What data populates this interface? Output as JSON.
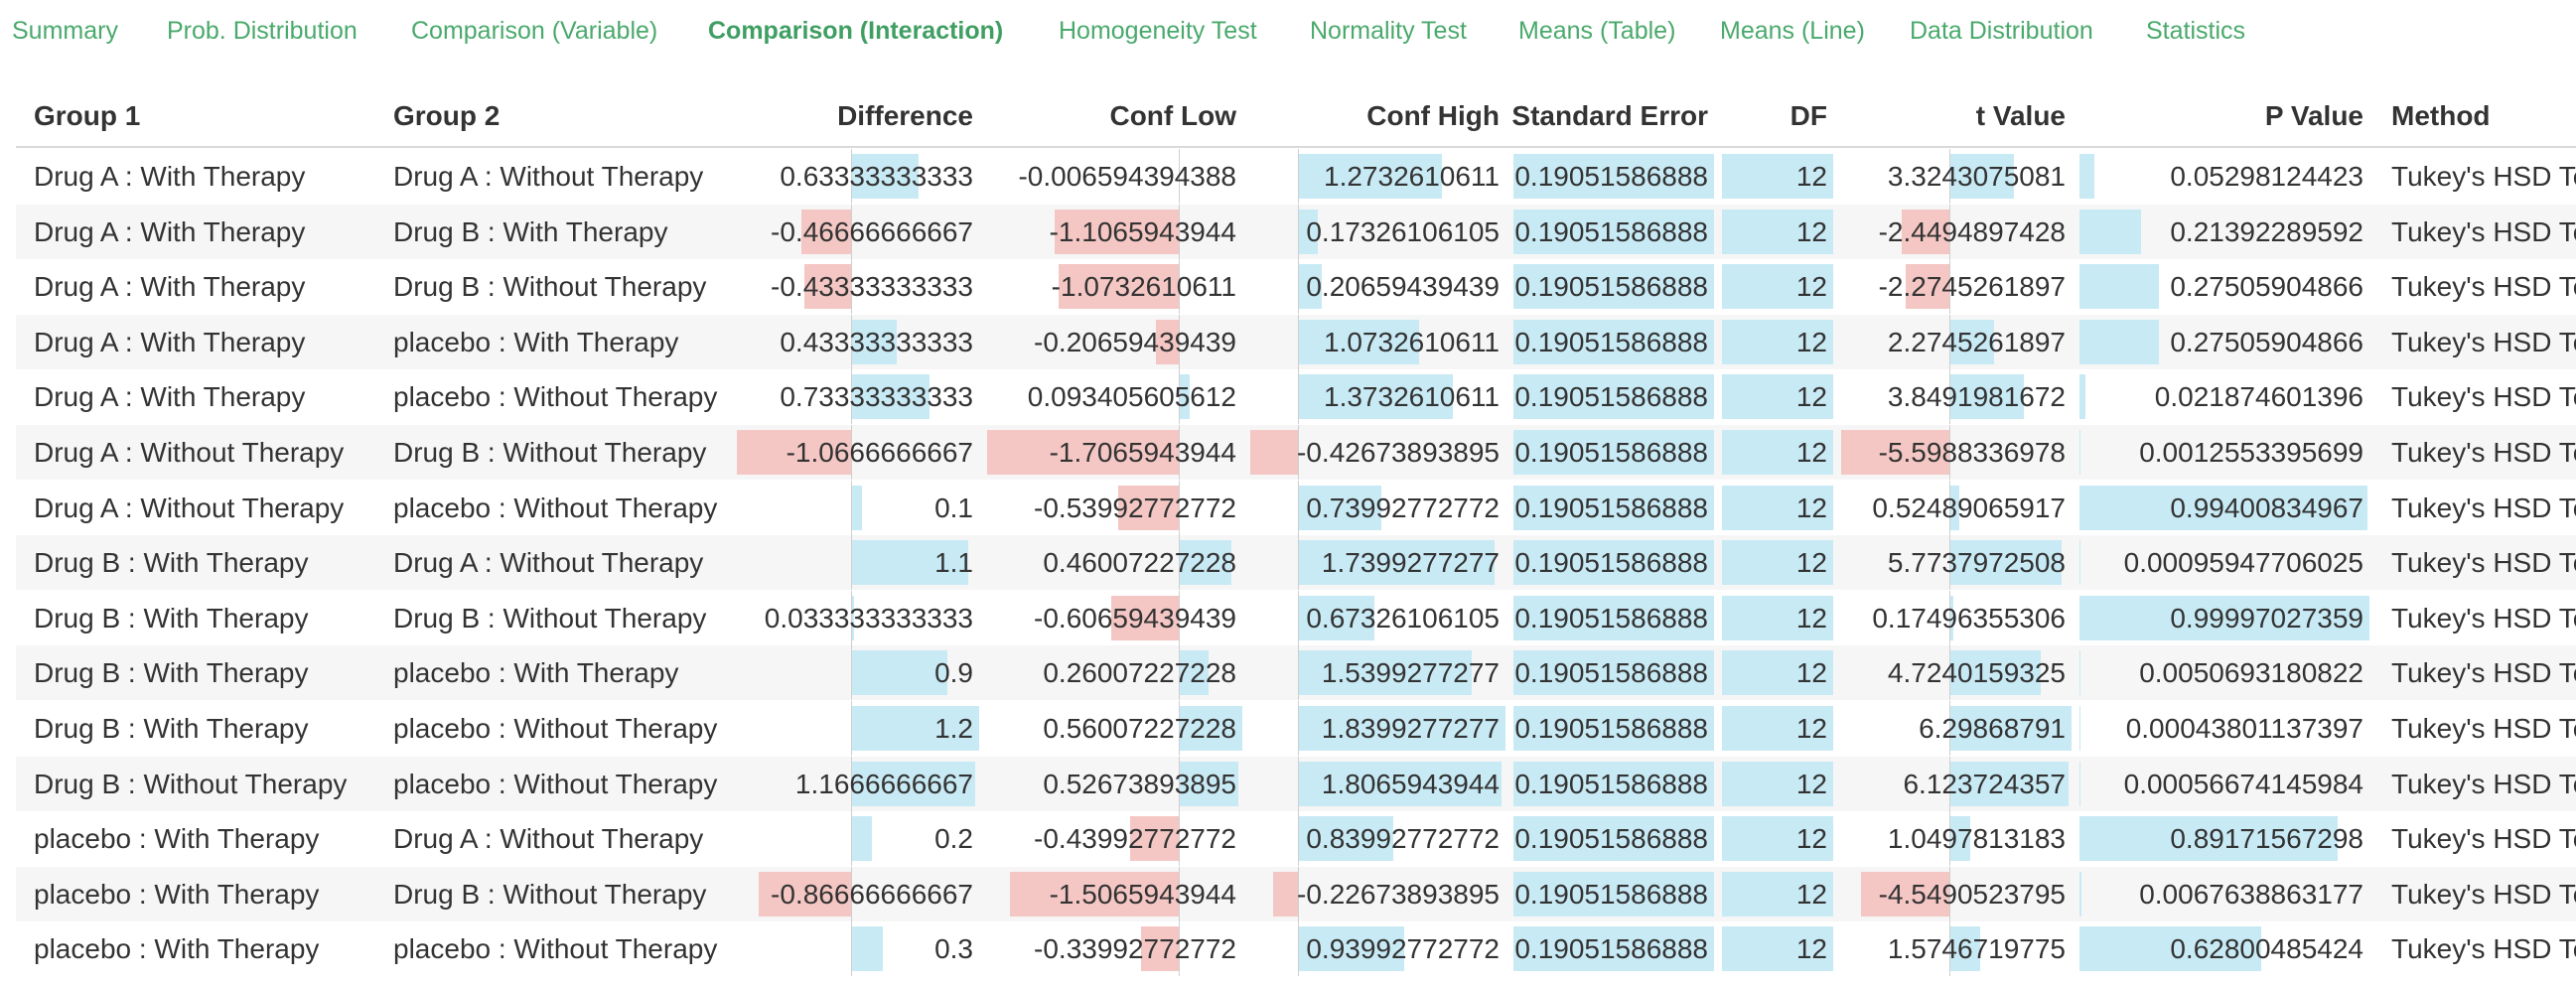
{
  "tabs": [
    {
      "label": "Summary",
      "active": false
    },
    {
      "label": "Prob. Distribution",
      "active": false
    },
    {
      "label": "Comparison (Variable)",
      "active": false
    },
    {
      "label": "Comparison (Interaction)",
      "active": true
    },
    {
      "label": "Homogeneity Test",
      "active": false
    },
    {
      "label": "Normality Test",
      "active": false
    },
    {
      "label": "Means (Table)",
      "active": false
    },
    {
      "label": "Means (Line)",
      "active": false
    },
    {
      "label": "Data Distribution",
      "active": false
    },
    {
      "label": "Statistics",
      "active": false
    }
  ],
  "colors": {
    "tab_text": "#4aa96c",
    "positive_bar": "#c8eaf5",
    "negative_bar": "#f4c7c4",
    "alt_row": "#f6f6f6"
  },
  "table": {
    "columns": [
      "Group 1",
      "Group 2",
      "Difference",
      "Conf Low",
      "Conf High",
      "Standard Error",
      "DF",
      "t Value",
      "P Value",
      "Method"
    ],
    "rows": [
      [
        "Drug A : With Therapy",
        "Drug A : Without Therapy",
        "0.63333333333",
        "-0.006594394388",
        "1.2732610611",
        "0.19051586888",
        "12",
        "3.3243075081",
        "0.05298124423",
        "Tukey's HSD Test"
      ],
      [
        "Drug A : With Therapy",
        "Drug B : With Therapy",
        "-0.46666666667",
        "-1.1065943944",
        "0.17326106105",
        "0.19051586888",
        "12",
        "-2.4494897428",
        "0.21392289592",
        "Tukey's HSD Test"
      ],
      [
        "Drug A : With Therapy",
        "Drug B : Without Therapy",
        "-0.43333333333",
        "-1.0732610611",
        "0.20659439439",
        "0.19051586888",
        "12",
        "-2.2745261897",
        "0.27505904866",
        "Tukey's HSD Test"
      ],
      [
        "Drug A : With Therapy",
        "placebo : With Therapy",
        "0.43333333333",
        "-0.20659439439",
        "1.0732610611",
        "0.19051586888",
        "12",
        "2.2745261897",
        "0.27505904866",
        "Tukey's HSD Test"
      ],
      [
        "Drug A : With Therapy",
        "placebo : Without Therapy",
        "0.73333333333",
        "0.093405605612",
        "1.3732610611",
        "0.19051586888",
        "12",
        "3.8491981672",
        "0.021874601396",
        "Tukey's HSD Test"
      ],
      [
        "Drug A : Without Therapy",
        "Drug B : Without Therapy",
        "-1.0666666667",
        "-1.7065943944",
        "-0.42673893895",
        "0.19051586888",
        "12",
        "-5.5988336978",
        "0.0012553395699",
        "Tukey's HSD Test"
      ],
      [
        "Drug A : Without Therapy",
        "placebo : Without Therapy",
        "0.1",
        "-0.53992772772",
        "0.73992772772",
        "0.19051586888",
        "12",
        "0.52489065917",
        "0.99400834967",
        "Tukey's HSD Test"
      ],
      [
        "Drug B : With Therapy",
        "Drug A : Without Therapy",
        "1.1",
        "0.46007227228",
        "1.7399277277",
        "0.19051586888",
        "12",
        "5.7737972508",
        "0.00095947706025",
        "Tukey's HSD Test"
      ],
      [
        "Drug B : With Therapy",
        "Drug B : Without Therapy",
        "0.033333333333",
        "-0.60659439439",
        "0.67326106105",
        "0.19051586888",
        "12",
        "0.17496355306",
        "0.99997027359",
        "Tukey's HSD Test"
      ],
      [
        "Drug B : With Therapy",
        "placebo : With Therapy",
        "0.9",
        "0.26007227228",
        "1.5399277277",
        "0.19051586888",
        "12",
        "4.7240159325",
        "0.0050693180822",
        "Tukey's HSD Test"
      ],
      [
        "Drug B : With Therapy",
        "placebo : Without Therapy",
        "1.2",
        "0.56007227228",
        "1.8399277277",
        "0.19051586888",
        "12",
        "6.29868791",
        "0.00043801137397",
        "Tukey's HSD Test"
      ],
      [
        "Drug B : Without Therapy",
        "placebo : Without Therapy",
        "1.1666666667",
        "0.52673893895",
        "1.8065943944",
        "0.19051586888",
        "12",
        "6.123724357",
        "0.00056674145984",
        "Tukey's HSD Test"
      ],
      [
        "placebo : With Therapy",
        "Drug A : Without Therapy",
        "0.2",
        "-0.43992772772",
        "0.83992772772",
        "0.19051586888",
        "12",
        "1.0497813183",
        "0.89171567298",
        "Tukey's HSD Test"
      ],
      [
        "placebo : With Therapy",
        "Drug B : Without Therapy",
        "-0.86666666667",
        "-1.5065943944",
        "-0.22673893895",
        "0.19051586888",
        "12",
        "-4.5490523795",
        "0.0067638863177",
        "Tukey's HSD Test"
      ],
      [
        "placebo : With Therapy",
        "placebo : Without Therapy",
        "0.3",
        "-0.33992772772",
        "0.93992772772",
        "0.19051586888",
        "12",
        "1.5746719775",
        "0.62800485424",
        "Tukey's HSD Test"
      ]
    ]
  }
}
